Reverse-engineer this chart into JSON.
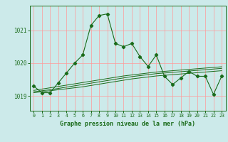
{
  "title": "Graphe pression niveau de la mer (hPa)",
  "background_color": "#cceaea",
  "plot_bg_color": "#cceaea",
  "grid_color": "#ff9999",
  "line_color": "#1a6b1a",
  "xlim": [
    -0.5,
    23.5
  ],
  "ylim": [
    1018.55,
    1021.75
  ],
  "yticks": [
    1019,
    1020,
    1021
  ],
  "xticks": [
    0,
    1,
    2,
    3,
    4,
    5,
    6,
    7,
    8,
    9,
    10,
    11,
    12,
    13,
    14,
    15,
    16,
    17,
    18,
    19,
    20,
    21,
    22,
    23
  ],
  "series_main": [
    1019.3,
    1019.1,
    1019.1,
    1019.4,
    1019.7,
    1020.0,
    1020.25,
    1021.15,
    1021.45,
    1021.5,
    1020.6,
    1020.5,
    1020.6,
    1020.2,
    1019.9,
    1020.25,
    1019.6,
    1019.35,
    1019.55,
    1019.75,
    1019.6,
    1019.6,
    1019.05,
    1019.6
  ],
  "series_line1": [
    1019.1,
    1019.13,
    1019.16,
    1019.19,
    1019.22,
    1019.25,
    1019.28,
    1019.32,
    1019.36,
    1019.4,
    1019.44,
    1019.48,
    1019.52,
    1019.55,
    1019.58,
    1019.61,
    1019.63,
    1019.65,
    1019.67,
    1019.69,
    1019.71,
    1019.73,
    1019.75,
    1019.77
  ],
  "series_line2": [
    1019.13,
    1019.16,
    1019.19,
    1019.23,
    1019.27,
    1019.31,
    1019.35,
    1019.39,
    1019.43,
    1019.47,
    1019.51,
    1019.55,
    1019.59,
    1019.62,
    1019.65,
    1019.68,
    1019.7,
    1019.72,
    1019.74,
    1019.76,
    1019.78,
    1019.8,
    1019.82,
    1019.84
  ],
  "series_line3": [
    1019.17,
    1019.21,
    1019.25,
    1019.29,
    1019.33,
    1019.37,
    1019.41,
    1019.45,
    1019.49,
    1019.53,
    1019.57,
    1019.61,
    1019.64,
    1019.67,
    1019.7,
    1019.73,
    1019.75,
    1019.77,
    1019.79,
    1019.81,
    1019.83,
    1019.85,
    1019.87,
    1019.89
  ]
}
